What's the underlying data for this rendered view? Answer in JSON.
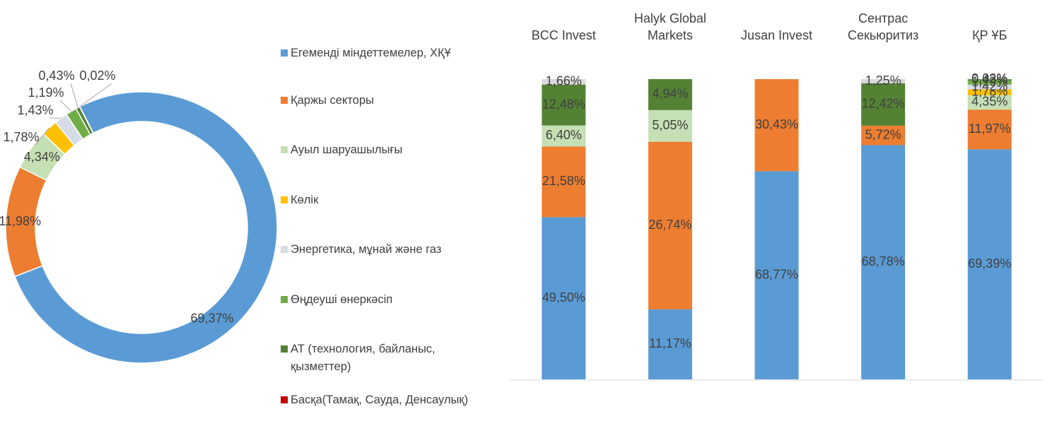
{
  "chart_data": [
    {
      "type": "pie",
      "hole": true,
      "categories": [
        "Егеменді міндеттемелер, ХҚҰ",
        "Қаржы секторы",
        "Ауыл шаруашылығы",
        "Көлік",
        "Энергетика, мұнай және газ",
        "Өңдеуші өнеркәсіп",
        "АТ (технология, байланыс, қызметтер)",
        "Басқа(Тамақ, Сауда, Денсаулық)"
      ],
      "values": [
        69.37,
        11.98,
        4.34,
        1.78,
        1.43,
        1.19,
        0.43,
        0.02
      ],
      "value_labels": [
        "69,37%",
        "11,98%",
        "4,34%",
        "1,78%",
        "1,43%",
        "1,19%",
        "0,43%",
        "0,02%"
      ],
      "colors": [
        "#5b9bd5",
        "#ed7d31",
        "#c5e0b4",
        "#ffc000",
        "#d6dce5",
        "#70ad47",
        "#548235",
        "#c00000"
      ],
      "legend": "right"
    },
    {
      "type": "bar",
      "stacking": "percent",
      "categories": [
        "BCC Invest",
        "Halyk Global Markets",
        "Jusan Invest",
        "Сентрас Секьюритиз",
        "ҚР ҰБ"
      ],
      "series": [
        {
          "color": "#5b9bd5",
          "values": [
            49.5,
            11.17,
            68.77,
            68.78,
            69.39
          ],
          "value_labels": [
            "49,50%",
            "11,17%",
            "68,77%",
            "68,78%",
            "69,39%"
          ]
        },
        {
          "color": "#ed7d31",
          "values": [
            21.58,
            26.74,
            30.43,
            5.72,
            11.97
          ],
          "value_labels": [
            "21,58%",
            "26,74%",
            "30,43%",
            "5,72%",
            "11,97%"
          ]
        },
        {
          "color": "#c5e0b4",
          "values": [
            6.4,
            5.05,
            null,
            null,
            4.35
          ],
          "value_labels": [
            "6,40%",
            "5,05%",
            null,
            null,
            "4,35%"
          ]
        },
        {
          "color": "#ffc000",
          "values": [
            null,
            null,
            null,
            null,
            1.78
          ],
          "value_labels": [
            null,
            null,
            null,
            null,
            "1,78%"
          ]
        },
        {
          "color": "#d6dce5",
          "values": [
            null,
            null,
            null,
            null,
            1.42
          ],
          "value_labels": [
            null,
            null,
            null,
            null,
            "1,42%"
          ]
        },
        {
          "color": "#70ad47",
          "values": [
            null,
            null,
            null,
            null,
            1.19
          ],
          "value_labels": [
            null,
            null,
            null,
            null,
            "1,19%"
          ]
        },
        {
          "color": "#548235",
          "values": [
            12.48,
            4.94,
            null,
            12.42,
            0.43
          ],
          "value_labels": [
            "12,48%",
            "4,94%",
            null,
            "12,42%",
            "0,43%"
          ]
        },
        {
          "color": "#d9d9d9",
          "values": [
            1.66,
            null,
            null,
            1.25,
            0.02
          ],
          "value_labels": [
            "1,66%",
            null,
            null,
            "1,25%",
            "0,02%"
          ]
        }
      ]
    }
  ]
}
